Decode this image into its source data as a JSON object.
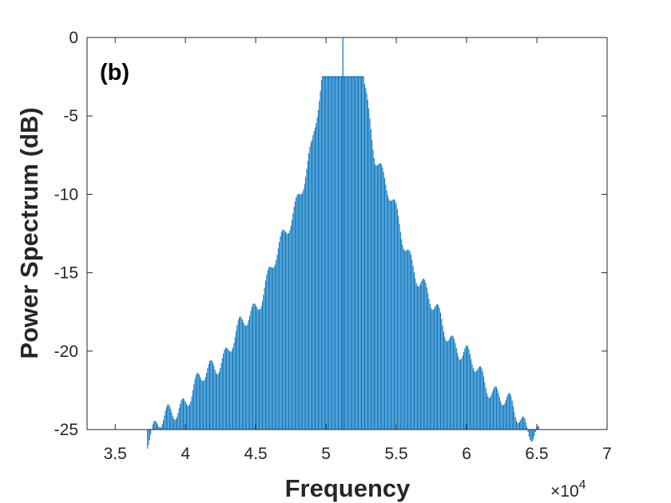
{
  "chart_data": {
    "type": "bar",
    "panel_label": "(b)",
    "xlabel": "Frequency",
    "ylabel": "Power Spectrum (dB)",
    "x_exponent_label": "×10",
    "x_exponent_power": "4",
    "xlim": [
      3.3,
      7.0
    ],
    "ylim": [
      -25,
      0
    ],
    "xticks": [
      3.5,
      4,
      4.5,
      5,
      5.5,
      6,
      6.5,
      7
    ],
    "xtick_labels": [
      "3.5",
      "4",
      "4.5",
      "5",
      "5.5",
      "6",
      "6.5",
      "7"
    ],
    "yticks": [
      0,
      -5,
      -10,
      -15,
      -20,
      -25
    ],
    "ytick_labels": [
      "0",
      "-5",
      "-10",
      "-15",
      "-20",
      "-25"
    ],
    "grid": false,
    "bar_color": "#0072BD",
    "peak": {
      "x": 5.12,
      "y": 0
    },
    "plateau": {
      "from": 4.97,
      "to": 5.27,
      "y": -2.5
    },
    "envelope": [
      {
        "x": 3.73,
        "y": -25.0
      },
      {
        "x": 3.9,
        "y": -23.6
      },
      {
        "x": 4.1,
        "y": -21.6
      },
      {
        "x": 4.3,
        "y": -19.5
      },
      {
        "x": 4.5,
        "y": -16.7
      },
      {
        "x": 4.7,
        "y": -12.5
      },
      {
        "x": 4.9,
        "y": -6.8
      },
      {
        "x": 4.97,
        "y": -2.5
      },
      {
        "x": 5.27,
        "y": -2.5
      },
      {
        "x": 5.35,
        "y": -6.8
      },
      {
        "x": 5.55,
        "y": -12.5
      },
      {
        "x": 5.75,
        "y": -16.7
      },
      {
        "x": 5.95,
        "y": -19.5
      },
      {
        "x": 6.15,
        "y": -21.6
      },
      {
        "x": 6.35,
        "y": -23.6
      },
      {
        "x": 6.52,
        "y": -25.0
      }
    ],
    "bar_spacing": 0.0075
  }
}
